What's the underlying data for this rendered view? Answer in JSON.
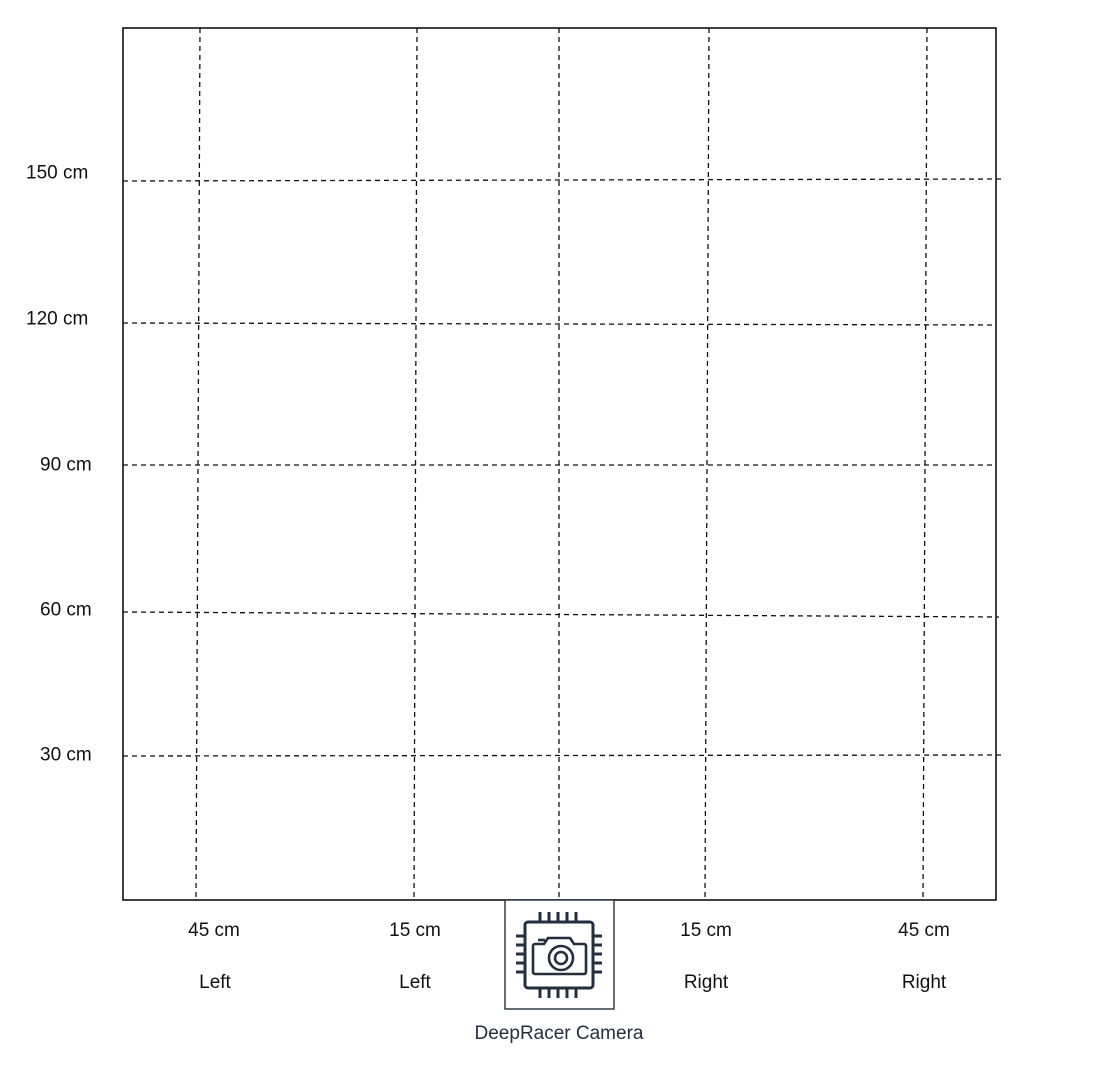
{
  "row_labels": [
    "150 cm",
    "120 cm",
    "90 cm",
    "60 cm",
    "30 cm"
  ],
  "column_labels": [
    {
      "distance": "45 cm",
      "side": "Left"
    },
    {
      "distance": "15 cm",
      "side": "Left"
    },
    {
      "distance": "15 cm",
      "side": "Right"
    },
    {
      "distance": "45 cm",
      "side": "Right"
    }
  ],
  "camera": {
    "label": "DeepRacer Camera",
    "icon": "camera-chip-icon"
  },
  "colors": {
    "grid_line": "#111111",
    "camera_icon": "#232f3e"
  }
}
